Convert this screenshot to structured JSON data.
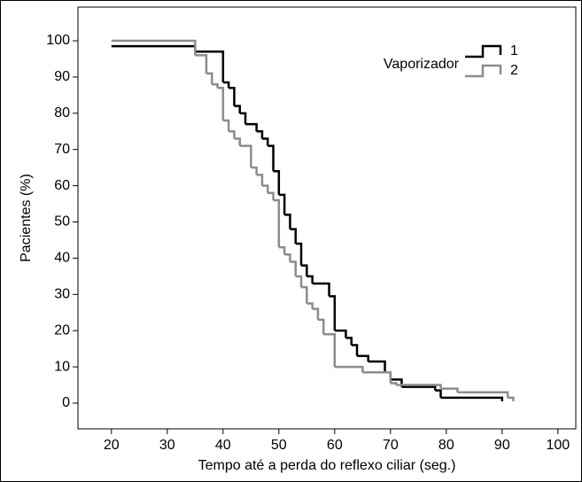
{
  "chart_data": {
    "type": "step",
    "x_label": "Tempo até a perda do reflexo ciliar (seg.)",
    "y_label": "Pacientes (%)",
    "legend_title": "Vaporizador",
    "xlim": [
      14,
      103.2
    ],
    "ylim": [
      -7.1,
      109.3
    ],
    "xticks": [
      20,
      30,
      40,
      50,
      60,
      70,
      80,
      90,
      100
    ],
    "yticks": [
      0,
      10,
      20,
      30,
      40,
      50,
      60,
      70,
      80,
      90,
      100
    ],
    "series": [
      {
        "name": "1",
        "color": "#000000",
        "x": [
          20,
          35,
          40,
          41,
          42,
          43,
          44,
          46,
          47,
          48,
          49,
          50,
          51,
          52,
          53,
          54,
          55,
          56,
          59,
          60,
          62,
          63,
          64,
          66,
          69,
          70,
          72,
          78,
          79,
          90
        ],
        "values": [
          98.5,
          97,
          88.5,
          87,
          82,
          80,
          77,
          75,
          73,
          71,
          64,
          57.5,
          52,
          48,
          44,
          38,
          35,
          33,
          29.5,
          20,
          18,
          16,
          13,
          11.5,
          8.5,
          6.5,
          4.5,
          3.5,
          1.5,
          0.5
        ]
      },
      {
        "name": "2",
        "color": "#8c8c8c",
        "x": [
          20,
          35,
          37,
          38,
          39,
          40,
          41,
          42,
          43,
          45,
          46,
          47,
          48,
          49,
          50,
          51,
          52,
          53,
          54,
          55,
          56,
          57,
          58,
          60,
          65,
          70,
          71,
          79,
          82,
          91,
          92
        ],
        "values": [
          100,
          96,
          91,
          88,
          87,
          78,
          75,
          73,
          71,
          65,
          63,
          60,
          58,
          56,
          43,
          41,
          39,
          35,
          32,
          27.5,
          26,
          23,
          19,
          10,
          8.5,
          5.5,
          5,
          4,
          3,
          1.5,
          0.5
        ]
      }
    ]
  }
}
